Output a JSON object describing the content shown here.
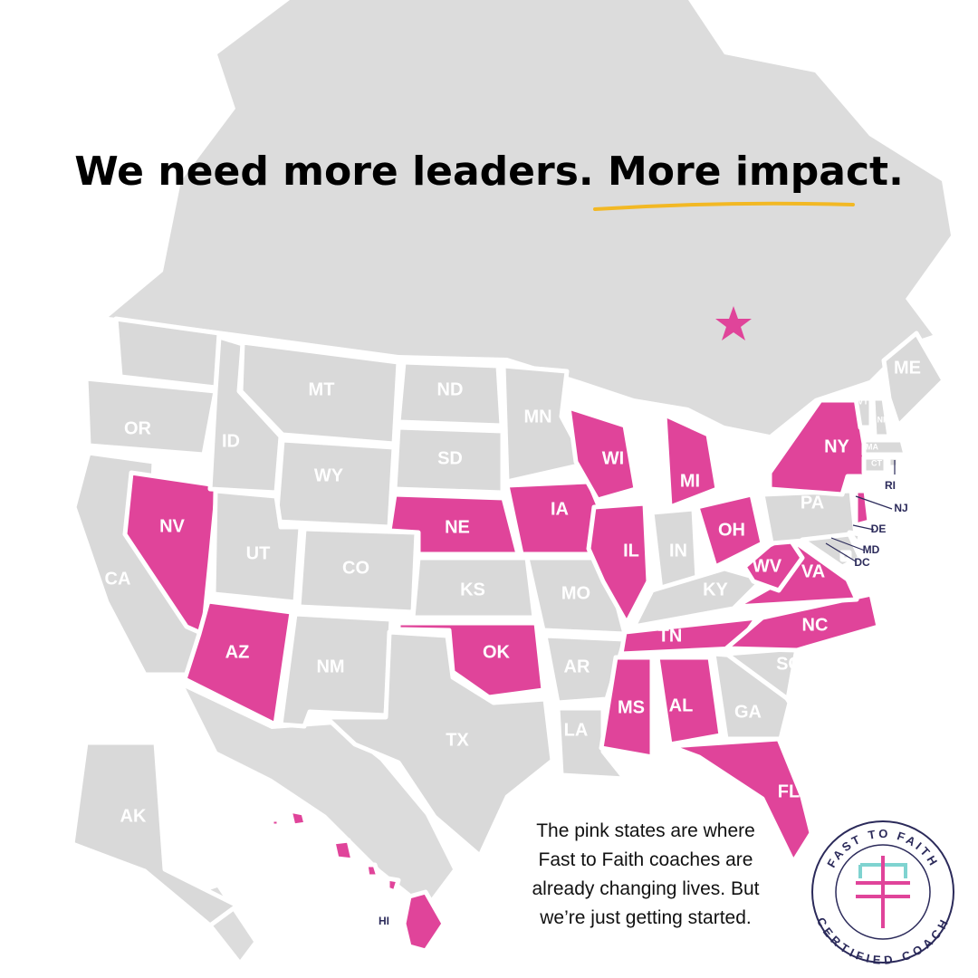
{
  "title": {
    "lead": "We need more leaders.",
    "emphasis": "More impact."
  },
  "states": [
    {
      "label": "OR",
      "highlighted": false
    },
    {
      "label": "CA",
      "highlighted": false
    },
    {
      "label": "NV",
      "highlighted": true
    },
    {
      "label": "ID",
      "highlighted": false
    },
    {
      "label": "MT",
      "highlighted": false
    },
    {
      "label": "WY",
      "highlighted": false
    },
    {
      "label": "UT",
      "highlighted": false
    },
    {
      "label": "CO",
      "highlighted": false
    },
    {
      "label": "AZ",
      "highlighted": true
    },
    {
      "label": "NM",
      "highlighted": false
    },
    {
      "label": "ND",
      "highlighted": false
    },
    {
      "label": "SD",
      "highlighted": false
    },
    {
      "label": "NE",
      "highlighted": true
    },
    {
      "label": "KS",
      "highlighted": false
    },
    {
      "label": "OK",
      "highlighted": true
    },
    {
      "label": "TX",
      "highlighted": false
    },
    {
      "label": "MN",
      "highlighted": false
    },
    {
      "label": "IA",
      "highlighted": true
    },
    {
      "label": "MO",
      "highlighted": false
    },
    {
      "label": "AR",
      "highlighted": false
    },
    {
      "label": "LA",
      "highlighted": false
    },
    {
      "label": "WI",
      "highlighted": true
    },
    {
      "label": "IL",
      "highlighted": true
    },
    {
      "label": "MI",
      "highlighted": true
    },
    {
      "label": "IN",
      "highlighted": false
    },
    {
      "label": "OH",
      "highlighted": true
    },
    {
      "label": "KY",
      "highlighted": false
    },
    {
      "label": "TN",
      "highlighted": true
    },
    {
      "label": "MS",
      "highlighted": true
    },
    {
      "label": "AL",
      "highlighted": true
    },
    {
      "label": "GA",
      "highlighted": false
    },
    {
      "label": "FL",
      "highlighted": true
    },
    {
      "label": "SC",
      "highlighted": false
    },
    {
      "label": "NC",
      "highlighted": true
    },
    {
      "label": "VA",
      "highlighted": true
    },
    {
      "label": "WV",
      "highlighted": true
    },
    {
      "label": "PA",
      "highlighted": false
    },
    {
      "label": "NY",
      "highlighted": true
    },
    {
      "label": "NJ",
      "highlighted": true
    },
    {
      "label": "DE",
      "highlighted": false
    },
    {
      "label": "MD",
      "highlighted": false
    },
    {
      "label": "DC",
      "highlighted": false
    },
    {
      "label": "VT",
      "highlighted": false
    },
    {
      "label": "NH",
      "highlighted": false
    },
    {
      "label": "ME",
      "highlighted": false
    },
    {
      "label": "MA",
      "highlighted": false
    },
    {
      "label": "CT",
      "highlighted": false
    },
    {
      "label": "RI",
      "highlighted": false
    },
    {
      "label": "AK",
      "highlighted": false
    },
    {
      "label": "HI",
      "highlighted": true
    }
  ],
  "caption": [
    "The pink states are where",
    "Fast to Faith coaches are",
    "already changing lives. But",
    "we’re just getting started."
  ],
  "logo": {
    "top": "FAST TO FAITH",
    "bottom": "CERTIFIED COACH"
  }
}
